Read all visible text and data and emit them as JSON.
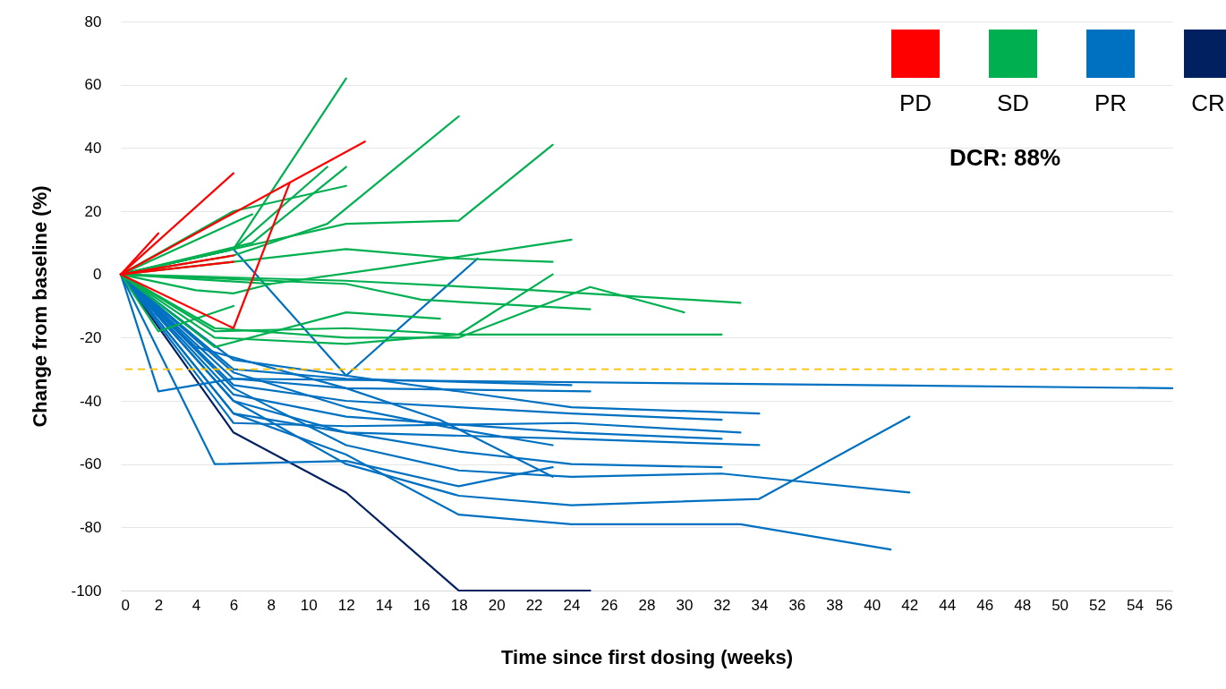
{
  "chart_data": {
    "type": "line",
    "xlabel": "Time since first dosing (weeks)",
    "ylabel": "Change from baseline (%)",
    "xlim": [
      0,
      56
    ],
    "xticks": [
      0,
      2,
      4,
      6,
      8,
      10,
      12,
      14,
      16,
      18,
      20,
      22,
      24,
      26,
      28,
      30,
      32,
      34,
      36,
      38,
      40,
      42,
      44,
      46,
      48,
      50,
      52,
      54,
      56
    ],
    "ylim": [
      -100,
      80
    ],
    "yticks": [
      -100,
      -80,
      -60,
      -40,
      -20,
      0,
      20,
      40,
      60,
      80
    ],
    "grid": "y",
    "legend": "top right",
    "marker": "none",
    "line_style": "solid",
    "annotations": [
      "DCR: 88%"
    ],
    "ref_lines": [
      {
        "axis": "y",
        "value": -30,
        "color": "#ffc000",
        "line_style": "dashed"
      }
    ],
    "series": [
      {
        "name": "PD",
        "color": "#ff0000",
        "x": [
          0,
          2
        ],
        "values": [
          0,
          13
        ]
      },
      {
        "color": "#ff0000",
        "x": [
          0,
          6
        ],
        "values": [
          0,
          32
        ]
      },
      {
        "color": "#ff0000",
        "x": [
          0,
          13
        ],
        "values": [
          0,
          42
        ]
      },
      {
        "color": "#ff0000",
        "x": [
          0,
          6,
          9
        ],
        "values": [
          0,
          -17,
          29
        ]
      },
      {
        "color": "#ff0000",
        "x": [
          0,
          6
        ],
        "values": [
          0,
          6
        ]
      },
      {
        "color": "#ff0000",
        "x": [
          0,
          6
        ],
        "values": [
          0,
          4
        ]
      },
      {
        "name": "SD",
        "color": "#00b050",
        "x": [
          0,
          6,
          12
        ],
        "values": [
          0,
          8,
          62
        ]
      },
      {
        "color": "#00b050",
        "x": [
          0,
          6,
          11,
          18
        ],
        "values": [
          0,
          6,
          16,
          50
        ]
      },
      {
        "color": "#00b050",
        "x": [
          0,
          12,
          18,
          23
        ],
        "values": [
          0,
          16,
          17,
          41
        ]
      },
      {
        "color": "#00b050",
        "x": [
          0,
          7,
          12
        ],
        "values": [
          0,
          10,
          34
        ]
      },
      {
        "color": "#00b050",
        "x": [
          0,
          6,
          11
        ],
        "values": [
          0,
          8,
          34
        ]
      },
      {
        "color": "#00b050",
        "x": [
          0,
          6,
          12
        ],
        "values": [
          0,
          20,
          28
        ]
      },
      {
        "color": "#00b050",
        "x": [
          0,
          7
        ],
        "values": [
          0,
          19
        ]
      },
      {
        "color": "#00b050",
        "x": [
          0,
          12,
          18,
          23
        ],
        "values": [
          0,
          8,
          5,
          4
        ]
      },
      {
        "color": "#00b050",
        "x": [
          0,
          8,
          14,
          24
        ],
        "values": [
          0,
          -3,
          2,
          11
        ]
      },
      {
        "color": "#00b050",
        "x": [
          0,
          12,
          22,
          33
        ],
        "values": [
          0,
          -2,
          -5,
          -9
        ]
      },
      {
        "color": "#00b050",
        "x": [
          0,
          5,
          12,
          18,
          25,
          30
        ],
        "values": [
          0,
          -17,
          -20,
          -20,
          -4,
          -12
        ]
      },
      {
        "color": "#00b050",
        "x": [
          0,
          8,
          12,
          16,
          25
        ],
        "values": [
          0,
          -2,
          -3,
          -8,
          -11
        ]
      },
      {
        "color": "#00b050",
        "x": [
          0,
          5,
          12,
          18,
          32
        ],
        "values": [
          0,
          -18,
          -17,
          -19,
          -19
        ]
      },
      {
        "color": "#00b050",
        "x": [
          0,
          5,
          12,
          18,
          23
        ],
        "values": [
          0,
          -20,
          -22,
          -19,
          0
        ]
      },
      {
        "color": "#00b050",
        "x": [
          0,
          5,
          12,
          17
        ],
        "values": [
          0,
          -23,
          -12,
          -14
        ]
      },
      {
        "color": "#00b050",
        "x": [
          0,
          2,
          6
        ],
        "values": [
          0,
          -18,
          -10
        ]
      },
      {
        "color": "#00b050",
        "x": [
          0,
          4,
          6,
          8
        ],
        "values": [
          0,
          -5,
          -6,
          -3
        ]
      },
      {
        "name": "PR",
        "color": "#0070c0",
        "x": [
          0,
          6,
          12,
          19
        ],
        "values": [
          0,
          8,
          -32,
          5
        ]
      },
      {
        "color": "#0070c0",
        "x": [
          0,
          2,
          6,
          56
        ],
        "values": [
          0,
          -37,
          -33,
          -36
        ]
      },
      {
        "color": "#0070c0",
        "x": [
          0,
          5,
          12,
          18,
          23
        ],
        "values": [
          0,
          -60,
          -59,
          -67,
          -61
        ]
      },
      {
        "color": "#0070c0",
        "x": [
          0,
          6,
          12,
          24
        ],
        "values": [
          0,
          -30,
          -33,
          -35
        ]
      },
      {
        "color": "#0070c0",
        "x": [
          0,
          6,
          12,
          25
        ],
        "values": [
          0,
          -33,
          -36,
          -37
        ]
      },
      {
        "color": "#0070c0",
        "x": [
          0,
          6,
          12,
          24,
          34
        ],
        "values": [
          0,
          -27,
          -32,
          -42,
          -44
        ]
      },
      {
        "color": "#0070c0",
        "x": [
          0,
          6,
          12,
          24,
          32
        ],
        "values": [
          0,
          -35,
          -40,
          -44,
          -46
        ]
      },
      {
        "color": "#0070c0",
        "x": [
          0,
          6,
          12,
          24,
          33
        ],
        "values": [
          0,
          -47,
          -48,
          -47,
          -50
        ]
      },
      {
        "color": "#0070c0",
        "x": [
          0,
          6,
          12,
          24,
          32
        ],
        "values": [
          0,
          -38,
          -45,
          -50,
          -52
        ]
      },
      {
        "color": "#0070c0",
        "x": [
          0,
          6,
          12,
          24,
          34
        ],
        "values": [
          0,
          -40,
          -50,
          -52,
          -54
        ]
      },
      {
        "color": "#0070c0",
        "x": [
          0,
          6,
          12,
          18,
          24,
          32
        ],
        "values": [
          0,
          -44,
          -50,
          -56,
          -60,
          -61
        ]
      },
      {
        "color": "#0070c0",
        "x": [
          0,
          6,
          12,
          18,
          24,
          32,
          42
        ],
        "values": [
          0,
          -36,
          -54,
          -62,
          -64,
          -63,
          -69
        ]
      },
      {
        "color": "#0070c0",
        "x": [
          0,
          6,
          12,
          18,
          24,
          34,
          42
        ],
        "values": [
          0,
          -40,
          -60,
          -70,
          -73,
          -71,
          -45
        ]
      },
      {
        "color": "#0070c0",
        "x": [
          0,
          6,
          12,
          18,
          24,
          33,
          41
        ],
        "values": [
          0,
          -44,
          -57,
          -76,
          -79,
          -79,
          -87
        ]
      },
      {
        "color": "#0070c0",
        "x": [
          0,
          6,
          12,
          18,
          23
        ],
        "values": [
          0,
          -31,
          -42,
          -49,
          -54
        ]
      },
      {
        "color": "#0070c0",
        "x": [
          0,
          4,
          12,
          17,
          23
        ],
        "values": [
          0,
          -23,
          -36,
          -46,
          -64
        ]
      },
      {
        "name": "CR",
        "color": "#002060",
        "x": [
          0,
          6,
          12,
          18,
          25
        ],
        "values": [
          0,
          -50,
          -69,
          -100,
          -100
        ]
      }
    ]
  }
}
